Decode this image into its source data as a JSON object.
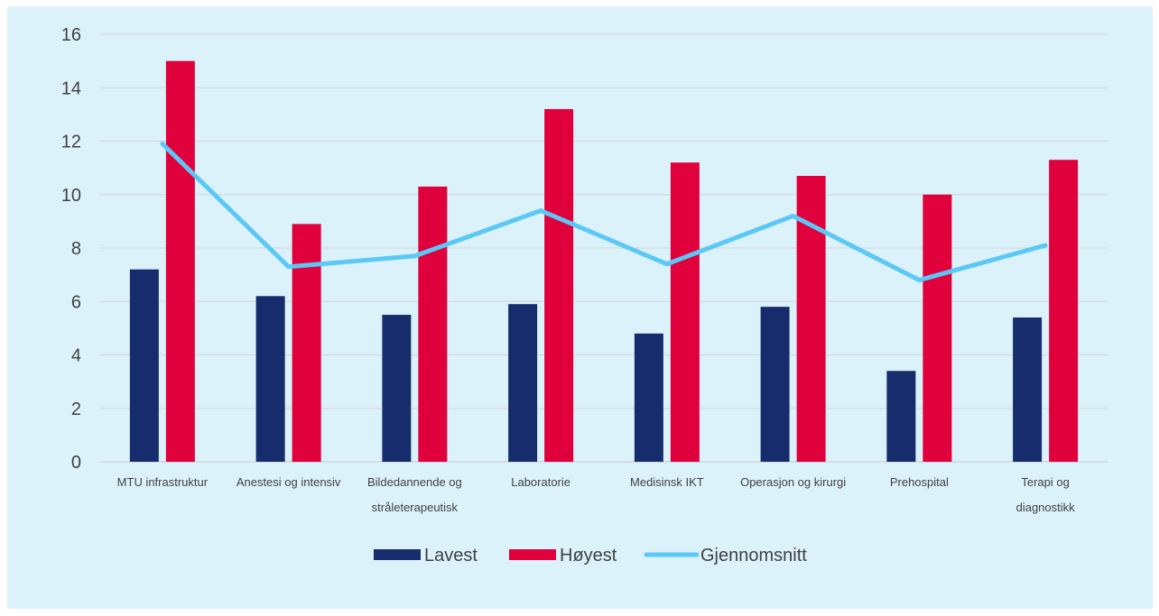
{
  "chart_data": {
    "type": "bar",
    "title": "",
    "xlabel": "",
    "ylabel": "",
    "ylim": [
      0,
      16
    ],
    "y_ticks": [
      "0",
      "2",
      "4",
      "6",
      "8",
      "10",
      "12",
      "14",
      "16"
    ],
    "grid": true,
    "legend_position": "bottom",
    "categories": [
      [
        "MTU infrastruktur"
      ],
      [
        "Anestesi og intensiv"
      ],
      [
        "Bildedannende og",
        "stråleterapeutisk"
      ],
      [
        "Laboratorie"
      ],
      [
        "Medisinsk IKT"
      ],
      [
        "Operasjon og kirurgi"
      ],
      [
        "Prehospital"
      ],
      [
        "Terapi og",
        "diagnostikk"
      ]
    ],
    "series": [
      {
        "name": "Lavest",
        "kind": "bar",
        "color": "#172c6c",
        "values": [
          7.2,
          6.2,
          5.5,
          5.9,
          4.8,
          5.8,
          3.4,
          5.4
        ]
      },
      {
        "name": "Høyest",
        "kind": "bar",
        "color": "#e0003c",
        "values": [
          15.0,
          8.9,
          10.3,
          13.2,
          11.2,
          10.7,
          10.0,
          11.3
        ]
      },
      {
        "name": "Gjennomsnitt",
        "kind": "line",
        "color": "#5bc8f5",
        "values": [
          11.9,
          7.3,
          7.7,
          9.4,
          7.4,
          9.2,
          6.8,
          8.1
        ]
      }
    ]
  }
}
